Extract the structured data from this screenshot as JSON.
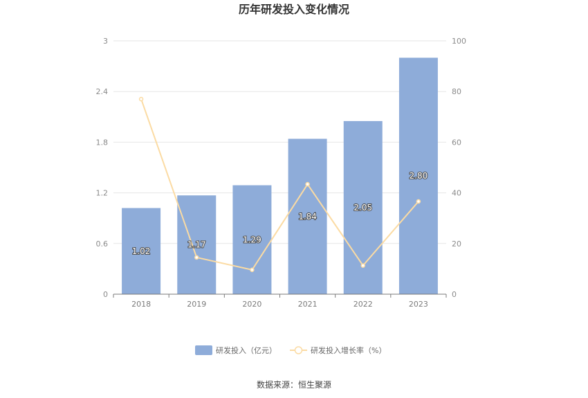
{
  "chart_data": {
    "type": "bar",
    "title": "历年研发投入变化情况",
    "categories": [
      "2018",
      "2019",
      "2020",
      "2021",
      "2022",
      "2023"
    ],
    "series": [
      {
        "name": "研发投入（亿元）",
        "type": "bar",
        "axis": "left",
        "values": [
          1.02,
          1.17,
          1.29,
          1.84,
          2.05,
          2.8
        ],
        "labels": [
          "1.02",
          "1.17",
          "1.29",
          "1.84",
          "2.05",
          "2.80"
        ],
        "color": "#8eacd9"
      },
      {
        "name": "研发投入增长率（%）",
        "type": "line",
        "axis": "right",
        "values": [
          77.0,
          14.5,
          9.6,
          43.4,
          11.3,
          36.6
        ],
        "color": "#fbdba3"
      }
    ],
    "y_left": {
      "min": 0,
      "max": 3,
      "ticks": [
        "0",
        "0.6",
        "1.2",
        "1.8",
        "2.4",
        "3"
      ]
    },
    "y_right": {
      "min": 0,
      "max": 100,
      "ticks": [
        "0",
        "20",
        "40",
        "60",
        "80",
        "100"
      ]
    },
    "grid": true,
    "legend_position": "bottom"
  },
  "source": "数据来源：恒生聚源"
}
